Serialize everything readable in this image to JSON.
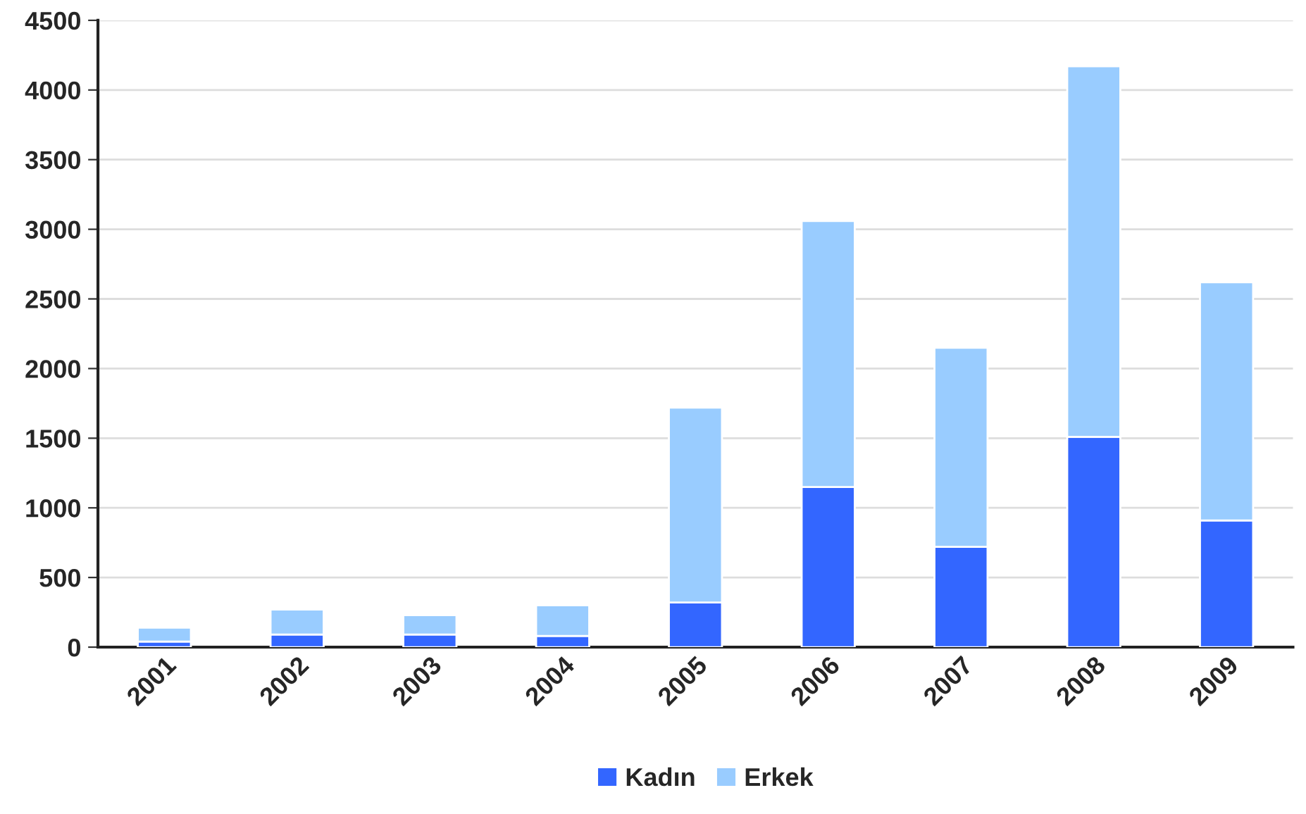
{
  "chart_data": {
    "type": "bar",
    "stacked": true,
    "categories": [
      "2001",
      "2002",
      "2003",
      "2004",
      "2005",
      "2006",
      "2007",
      "2008",
      "2009"
    ],
    "series": [
      {
        "name": "Kadın",
        "color": "#3366ff",
        "values": [
          40,
          90,
          90,
          80,
          320,
          1150,
          720,
          1510,
          910
        ]
      },
      {
        "name": "Erkek",
        "color": "#99ccff",
        "values": [
          100,
          180,
          140,
          220,
          1400,
          1910,
          1430,
          2660,
          1710
        ]
      }
    ],
    "ylim": [
      0,
      4500
    ],
    "yticks": [
      0,
      500,
      1000,
      1500,
      2000,
      2500,
      3000,
      3500,
      4000,
      4500
    ],
    "grid": "y",
    "legend": "bottom"
  }
}
